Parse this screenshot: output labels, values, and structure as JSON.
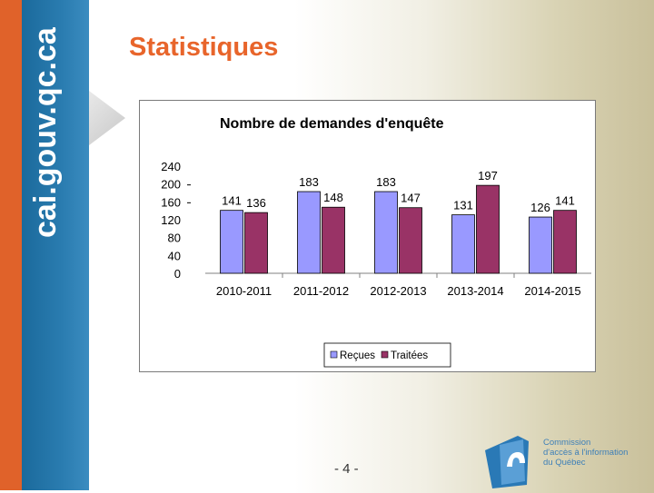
{
  "slide": {
    "title": "Statistiques",
    "side_text": "cai.gouv.qc.ca",
    "page_number": "- 4 -",
    "org_name": [
      "Commission",
      "d'accès à l'information",
      "du Québec"
    ]
  },
  "colors": {
    "accent": "#e8652b",
    "series1": "#9999ff",
    "series2": "#993366"
  },
  "chart_data": {
    "type": "bar",
    "title": "Nombre de demandes d'enquête",
    "categories": [
      "2010-2011",
      "2011-2012",
      "2012-2013",
      "2013-2014",
      "2014-2015"
    ],
    "series": [
      {
        "name": "Reçues",
        "values": [
          141,
          183,
          183,
          131,
          126
        ],
        "color": "#9999ff"
      },
      {
        "name": "Traitées",
        "values": [
          136,
          148,
          147,
          197,
          141
        ],
        "color": "#993366"
      }
    ],
    "yticks": [
      "240",
      "200",
      "160",
      "120",
      "80",
      "40",
      "0"
    ],
    "ylim": [
      0,
      240
    ],
    "xlabel": "",
    "ylabel": "",
    "grid": false,
    "legend": "bottom"
  }
}
